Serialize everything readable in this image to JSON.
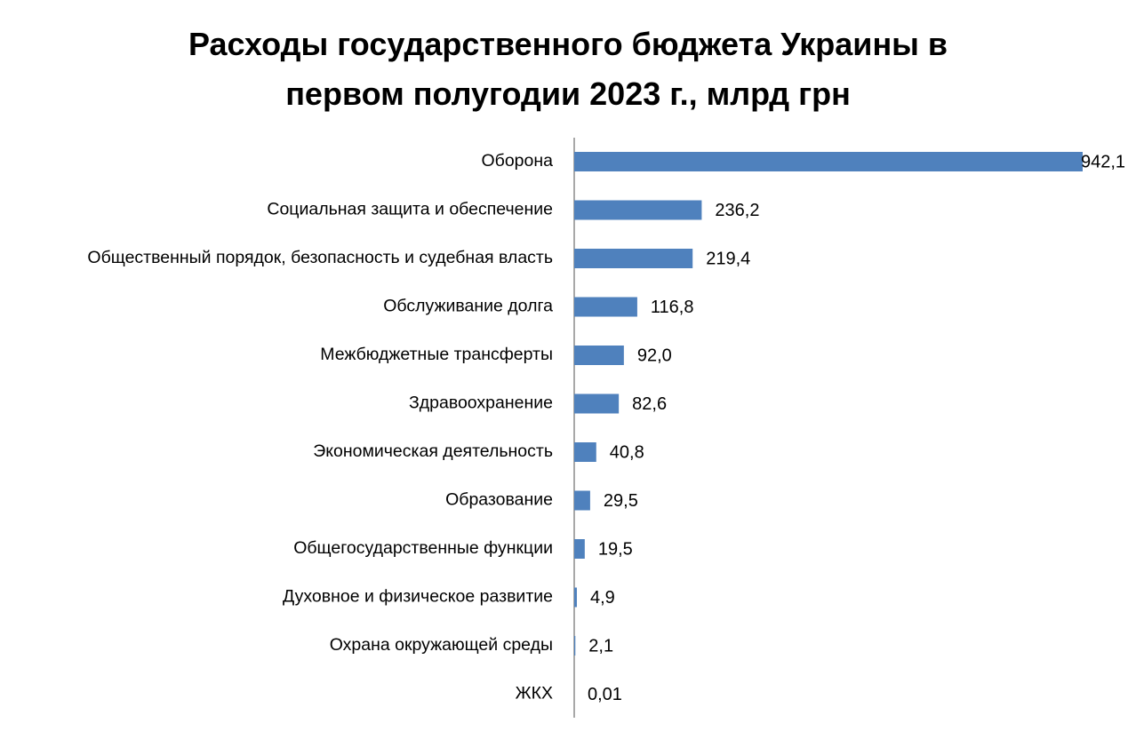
{
  "chart_data": {
    "type": "bar",
    "orientation": "horizontal",
    "title_lines": [
      "Расходы государственного бюджета Украины в",
      "первом полугодии 2023 г., млрд грн"
    ],
    "categories": [
      "Оборона",
      "Социальная защита и обеспечение",
      "Общественный порядок, безопасность и судебная власть",
      "Обслуживание долга",
      "Межбюджетные трансферты",
      "Здравоохранение",
      "Экономическая деятельность",
      "Образование",
      "Общегосударственные функции",
      "Духовное и физическое развитие",
      "Охрана окружающей среды",
      "ЖКХ"
    ],
    "values": [
      942.1,
      236.2,
      219.4,
      116.8,
      92.0,
      82.6,
      40.8,
      29.5,
      19.5,
      4.9,
      2.1,
      0.01
    ],
    "value_labels": [
      "942,1",
      "236,2",
      "219,4",
      "116,8",
      "92,0",
      "82,6",
      "40,8",
      "29,5",
      "19,5",
      "4,9",
      "2,1",
      "0,01"
    ],
    "xlim": [
      0,
      942.1
    ],
    "grid": false,
    "legend": "none",
    "bar_color": "#4f81bd",
    "axis_color": "#8c8c8c"
  }
}
